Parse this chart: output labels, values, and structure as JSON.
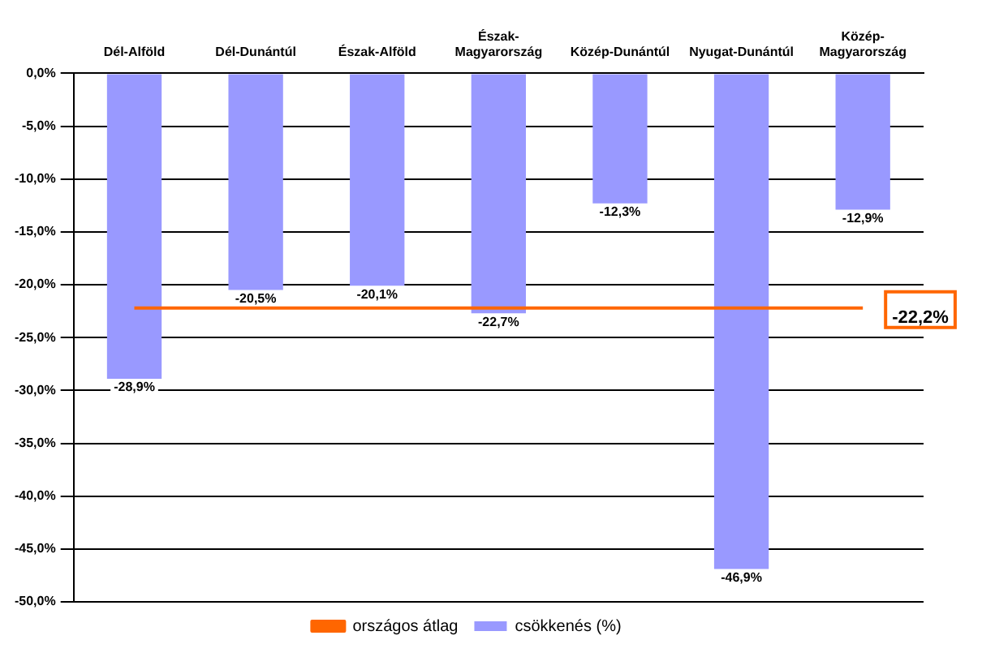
{
  "chart_data": {
    "type": "bar",
    "categories": [
      "Dél-Alföld",
      "Dél-Dunántúl",
      "Észak-Alföld",
      "Észak-Magyarország",
      "Közép-Dunántúl",
      "Nyugat-Dunántúl",
      "Közép-Magyarország"
    ],
    "series": [
      {
        "name": "csökkenés (%)",
        "color": "#9999ff",
        "values": [
          -28.9,
          -20.5,
          -20.1,
          -22.7,
          -12.3,
          -46.9,
          -12.9
        ],
        "value_labels": [
          "-28,9%",
          "-20,5%",
          "-20,1%",
          "-22,7%",
          "-12,3%",
          "-46,9%",
          "-12,9%"
        ]
      },
      {
        "name": "országos átlag",
        "type": "line",
        "color": "#ff6600",
        "values": [
          -22.2,
          -22.2,
          -22.2,
          -22.2,
          -22.2,
          -22.2,
          -22.2
        ],
        "value_labels": [
          null,
          null,
          null,
          null,
          null,
          null,
          "-22,2%"
        ]
      }
    ],
    "ylim": [
      -50,
      0
    ],
    "yticks": [
      {
        "value": 0,
        "label": "0,0%"
      },
      {
        "value": -5,
        "label": "-5,0%"
      },
      {
        "value": -10,
        "label": "-10,0%"
      },
      {
        "value": -15,
        "label": "-15,0%"
      },
      {
        "value": -20,
        "label": "-20,0%"
      },
      {
        "value": -25,
        "label": "-25,0%"
      },
      {
        "value": -30,
        "label": "-30,0%"
      },
      {
        "value": -35,
        "label": "-35,0%"
      },
      {
        "value": -40,
        "label": "-40,0%"
      },
      {
        "value": -45,
        "label": "-45,0%"
      },
      {
        "value": -50,
        "label": "-50,0%"
      }
    ],
    "grid": "y",
    "legend": "bottom",
    "marker": "none"
  }
}
